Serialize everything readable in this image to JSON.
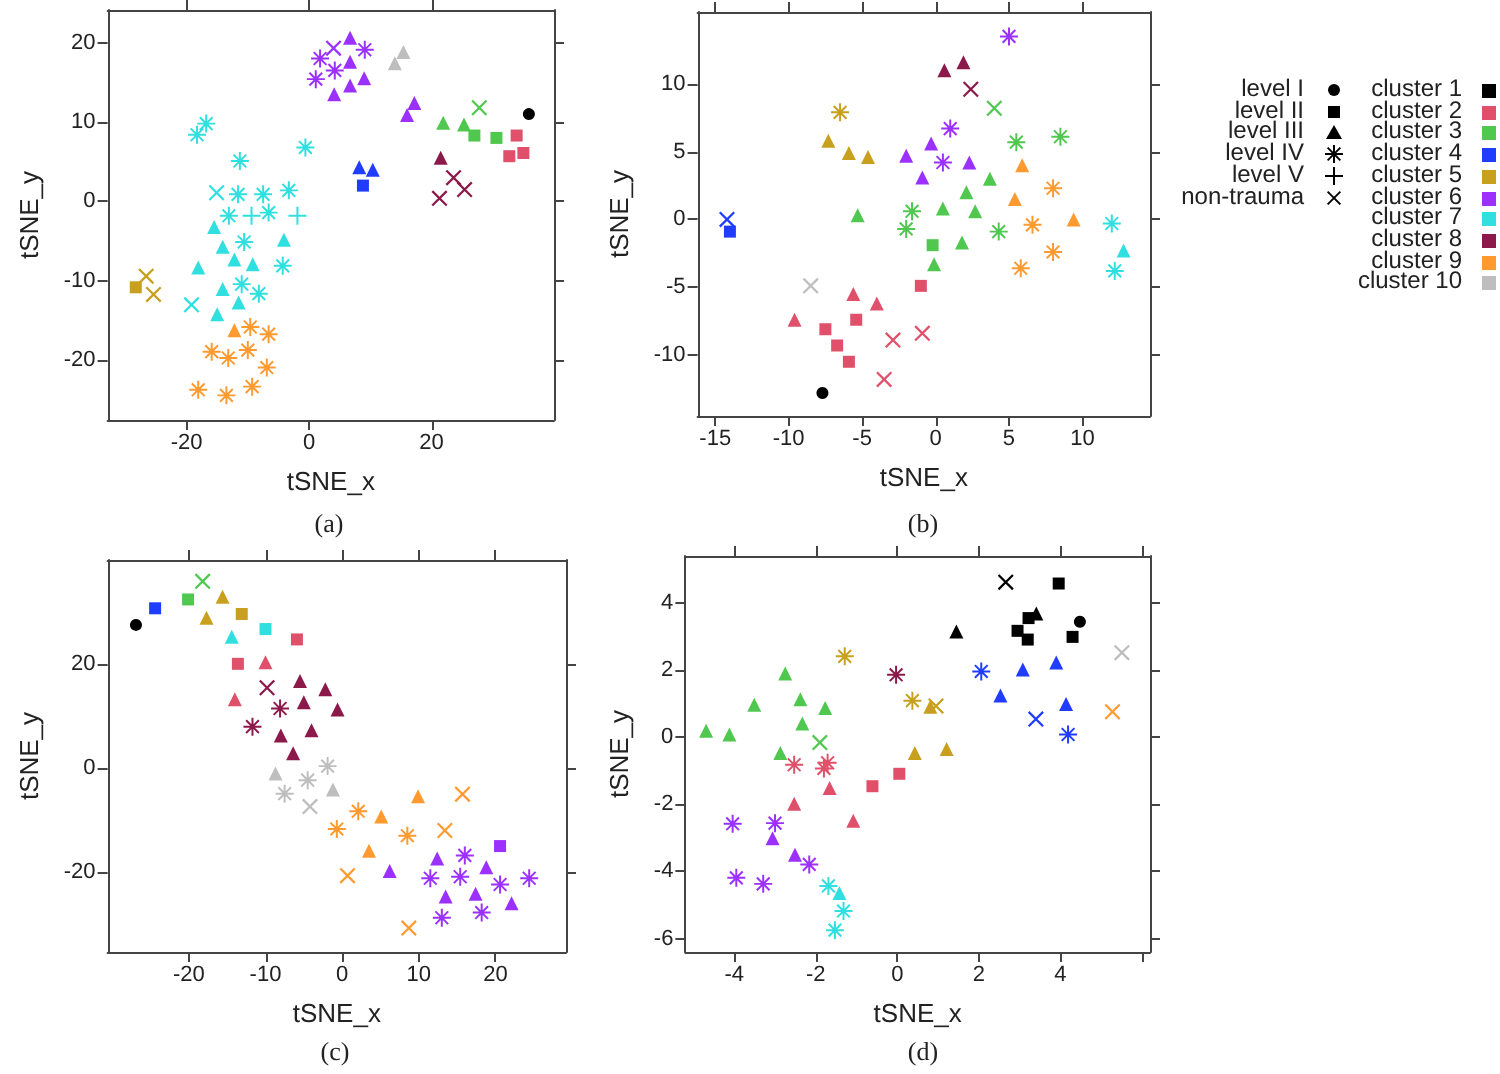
{
  "chart_data": [
    {
      "type": "scatter",
      "title": "(a)",
      "xlabel": "tSNE_x",
      "ylabel": "tSNE_y",
      "xlim": [
        -32.9,
        40
      ],
      "ylim": [
        -27.5,
        24.1
      ],
      "xticks": [
        -20,
        0,
        20
      ],
      "yticks": [
        -20,
        -10,
        0,
        10,
        20
      ],
      "series": [
        {
          "color": "#000000",
          "marker": "circle",
          "x": [
            35.9
          ],
          "values": [
            11.0
          ]
        },
        {
          "color": "#e0506a",
          "marker": "square",
          "x": [
            33.9,
            32.7,
            35.0
          ],
          "values": [
            8.3,
            5.7,
            6.1
          ]
        },
        {
          "color": "#50c850",
          "marker": "cross",
          "x": [
            27.8
          ],
          "values": [
            11.8
          ]
        },
        {
          "color": "#50c850",
          "marker": "triangle",
          "x": [
            21.9,
            25.3
          ],
          "values": [
            9.9,
            9.7
          ]
        },
        {
          "color": "#50c850",
          "marker": "square",
          "x": [
            27.0,
            30.6
          ],
          "values": [
            8.3,
            8.0
          ]
        },
        {
          "color": "#1f3cff",
          "marker": "triangle",
          "x": [
            8.2,
            10.4
          ],
          "values": [
            4.3,
            4.0
          ]
        },
        {
          "color": "#1f3cff",
          "marker": "square",
          "x": [
            8.8
          ],
          "values": [
            2.0
          ]
        },
        {
          "color": "#c8a01e",
          "marker": "square",
          "x": [
            -28.3
          ],
          "values": [
            -10.8
          ]
        },
        {
          "color": "#c8a01e",
          "marker": "cross",
          "x": [
            -26.6,
            -25.4
          ],
          "values": [
            -9.4,
            -11.7
          ]
        },
        {
          "color": "#9b30ff",
          "marker": "star",
          "x": [
            1.8,
            4.2,
            9.1,
            1.1
          ],
          "values": [
            18.0,
            16.5,
            19.1,
            15.4
          ]
        },
        {
          "color": "#9b30ff",
          "marker": "cross",
          "x": [
            4.0
          ],
          "values": [
            19.3
          ]
        },
        {
          "color": "#9b30ff",
          "marker": "triangle",
          "x": [
            6.7,
            6.7,
            4.1,
            6.7,
            9.0,
            17.2,
            16.0
          ],
          "values": [
            20.6,
            17.6,
            13.5,
            14.6,
            15.5,
            12.4,
            10.9
          ]
        },
        {
          "color": "#30e0e0",
          "marker": "star",
          "x": [
            -16.8,
            -18.3,
            -0.6,
            -11.3,
            -11.6,
            -7.5,
            -3.3,
            -13.1,
            -6.6,
            -10.6,
            -4.3,
            -11.0,
            -8.2
          ],
          "values": [
            9.8,
            8.4,
            6.8,
            5.1,
            0.9,
            0.9,
            1.4,
            -1.8,
            -1.4,
            -5.1,
            -8.1,
            -10.4,
            -11.6
          ]
        },
        {
          "color": "#30e0e0",
          "marker": "cross",
          "x": [
            -15.1,
            -19.2
          ],
          "values": [
            1.1,
            -13.0
          ]
        },
        {
          "color": "#30e0e0",
          "marker": "plus",
          "x": [
            -9.4,
            -1.9
          ],
          "values": [
            -1.8,
            -1.8
          ]
        },
        {
          "color": "#30e0e0",
          "marker": "triangle",
          "x": [
            -15.5,
            -4.1,
            -14.1,
            -12.2,
            -18.1,
            -9.2,
            -14.1,
            -11.5,
            -15.0
          ],
          "values": [
            -3.2,
            -4.8,
            -5.7,
            -7.3,
            -8.3,
            -7.9,
            -11.0,
            -12.7,
            -14.2
          ]
        },
        {
          "color": "#8b1a4a",
          "marker": "triangle",
          "x": [
            21.5
          ],
          "values": [
            5.5
          ]
        },
        {
          "color": "#8b1a4a",
          "marker": "cross",
          "x": [
            23.6,
            25.4,
            21.3
          ],
          "values": [
            3.0,
            1.5,
            0.4
          ]
        },
        {
          "color": "#ff9a30",
          "marker": "triangle",
          "x": [
            -12.2
          ],
          "values": [
            -16.2
          ]
        },
        {
          "color": "#ff9a30",
          "marker": "star",
          "x": [
            -9.6,
            -6.6,
            -15.9,
            -13.2,
            -10.0,
            -6.9,
            -18.1,
            -13.5,
            -9.3
          ],
          "values": [
            -15.8,
            -16.7,
            -18.9,
            -19.7,
            -18.7,
            -20.9,
            -23.7,
            -24.4,
            -23.3
          ]
        },
        {
          "color": "#bebebe",
          "marker": "triangle",
          "x": [
            14.0,
            15.4
          ],
          "values": [
            17.4,
            18.8
          ]
        }
      ]
    },
    {
      "type": "scatter",
      "title": "(b)",
      "xlabel": "tSNE_x",
      "ylabel": "tSNE_y",
      "xlim": [
        -16.2,
        14.6
      ],
      "ylim": [
        -14.5,
        15.3
      ],
      "xticks": [
        -15,
        -10,
        -5,
        0,
        5,
        10
      ],
      "yticks": [
        -10,
        -5,
        0,
        5,
        10
      ],
      "series": [
        {
          "color": "#000000",
          "marker": "circle",
          "x": [
            -7.7
          ],
          "values": [
            -12.8
          ]
        },
        {
          "color": "#e0506a",
          "marker": "square",
          "x": [
            -1.0,
            -5.4,
            -7.5,
            -6.7,
            -5.9
          ],
          "values": [
            -4.9,
            -7.4,
            -8.1,
            -9.3,
            -10.5
          ]
        },
        {
          "color": "#e0506a",
          "marker": "triangle",
          "x": [
            -5.6,
            -4.0,
            -9.6
          ],
          "values": [
            -5.5,
            -6.2,
            -7.4
          ]
        },
        {
          "color": "#e0506a",
          "marker": "cross",
          "x": [
            -2.9,
            -0.9,
            -3.5
          ],
          "values": [
            -8.9,
            -8.4,
            -11.8
          ]
        },
        {
          "color": "#50c850",
          "marker": "cross",
          "x": [
            4.0
          ],
          "values": [
            8.2
          ]
        },
        {
          "color": "#50c850",
          "marker": "star",
          "x": [
            5.5,
            8.5,
            -1.6,
            -2.0,
            4.3
          ],
          "values": [
            5.7,
            6.1,
            0.6,
            -0.7,
            -0.9
          ]
        },
        {
          "color": "#50c850",
          "marker": "triangle",
          "x": [
            3.7,
            2.1,
            0.5,
            2.7,
            -5.3,
            1.8,
            -0.1
          ],
          "values": [
            3.0,
            2.0,
            0.8,
            0.6,
            0.3,
            -1.7,
            -3.3
          ]
        },
        {
          "color": "#50c850",
          "marker": "square",
          "x": [
            -0.2
          ],
          "values": [
            -1.9
          ]
        },
        {
          "color": "#1f3cff",
          "marker": "cross",
          "x": [
            -14.2
          ],
          "values": [
            0.0
          ]
        },
        {
          "color": "#1f3cff",
          "marker": "square",
          "x": [
            -14.0
          ],
          "values": [
            -0.9
          ]
        },
        {
          "color": "#c8a01e",
          "marker": "star",
          "x": [
            -6.5
          ],
          "values": [
            7.9
          ]
        },
        {
          "color": "#c8a01e",
          "marker": "triangle",
          "x": [
            -7.3,
            -5.9,
            -4.6
          ],
          "values": [
            5.8,
            4.9,
            4.6
          ]
        },
        {
          "color": "#9b30ff",
          "marker": "star",
          "x": [
            5.0,
            1.0,
            0.5
          ],
          "values": [
            13.5,
            6.7,
            4.2
          ]
        },
        {
          "color": "#9b30ff",
          "marker": "triangle",
          "x": [
            -2.0,
            -0.3,
            2.3,
            -0.9
          ],
          "values": [
            4.7,
            5.6,
            4.2,
            3.1
          ]
        },
        {
          "color": "#30e0e0",
          "marker": "star",
          "x": [
            12.0,
            12.2
          ],
          "values": [
            -0.3,
            -3.8
          ]
        },
        {
          "color": "#30e0e0",
          "marker": "triangle",
          "x": [
            12.8
          ],
          "values": [
            -2.3
          ]
        },
        {
          "color": "#8b1a4a",
          "marker": "triangle",
          "x": [
            0.6,
            1.9
          ],
          "values": [
            11.0,
            11.6
          ]
        },
        {
          "color": "#8b1a4a",
          "marker": "cross",
          "x": [
            2.4
          ],
          "values": [
            9.6
          ]
        },
        {
          "color": "#ff9a30",
          "marker": "triangle",
          "x": [
            5.9,
            5.4,
            9.4
          ],
          "values": [
            4.0,
            1.5,
            0.0
          ]
        },
        {
          "color": "#ff9a30",
          "marker": "star",
          "x": [
            8.0,
            6.6,
            8.0,
            5.8
          ],
          "values": [
            2.3,
            -0.4,
            -2.4,
            -3.6
          ]
        },
        {
          "color": "#bebebe",
          "marker": "cross",
          "x": [
            -8.5
          ],
          "values": [
            -4.9
          ]
        }
      ]
    },
    {
      "type": "scatter",
      "title": "(c)",
      "xlabel": "tSNE_x",
      "ylabel": "tSNE_y",
      "xlim": [
        -30.6,
        29.2
      ],
      "ylim": [
        -35.4,
        40.1
      ],
      "xticks": [
        -20,
        -10,
        0,
        10,
        20
      ],
      "yticks": [
        -20,
        0,
        20
      ],
      "series": [
        {
          "color": "#000000",
          "marker": "circle",
          "x": [
            -26.9
          ],
          "values": [
            27.6
          ]
        },
        {
          "color": "#e0506a",
          "marker": "square",
          "x": [
            -5.9,
            -13.6
          ],
          "values": [
            24.8,
            20.1
          ]
        },
        {
          "color": "#e0506a",
          "marker": "triangle",
          "x": [
            -10.0,
            -14.0
          ],
          "values": [
            20.4,
            13.3
          ]
        },
        {
          "color": "#50c850",
          "marker": "square",
          "x": [
            -20.1
          ],
          "values": [
            32.5
          ]
        },
        {
          "color": "#50c850",
          "marker": "cross",
          "x": [
            -18.2
          ],
          "values": [
            36.0
          ]
        },
        {
          "color": "#1f3cff",
          "marker": "square",
          "x": [
            -24.4
          ],
          "values": [
            30.8
          ]
        },
        {
          "color": "#c8a01e",
          "marker": "triangle",
          "x": [
            -15.6,
            -17.7
          ],
          "values": [
            33.0,
            29.0
          ]
        },
        {
          "color": "#c8a01e",
          "marker": "square",
          "x": [
            -13.1
          ],
          "values": [
            29.7
          ]
        },
        {
          "color": "#9b30ff",
          "marker": "triangle",
          "x": [
            6.2,
            12.4,
            18.8,
            13.5,
            17.4,
            22.1
          ],
          "values": [
            -19.8,
            -17.4,
            -19.1,
            -24.7,
            -24.2,
            -26.0
          ]
        },
        {
          "color": "#9b30ff",
          "marker": "square",
          "x": [
            20.6
          ],
          "values": [
            -15.0
          ]
        },
        {
          "color": "#9b30ff",
          "marker": "star",
          "x": [
            16.0,
            11.5,
            15.4,
            20.6,
            24.4,
            13.0,
            18.2
          ],
          "values": [
            -16.8,
            -21.2,
            -20.9,
            -22.4,
            -21.2,
            -28.8,
            -27.8
          ]
        },
        {
          "color": "#30e0e0",
          "marker": "triangle",
          "x": [
            -14.4
          ],
          "values": [
            25.3
          ]
        },
        {
          "color": "#30e0e0",
          "marker": "square",
          "x": [
            -10.0
          ],
          "values": [
            26.8
          ]
        },
        {
          "color": "#8b1a4a",
          "marker": "cross",
          "x": [
            -9.8
          ],
          "values": [
            15.5
          ]
        },
        {
          "color": "#8b1a4a",
          "marker": "triangle",
          "x": [
            -5.5,
            -2.2,
            -5.0,
            -0.6,
            -8.0,
            -4.0,
            -6.4
          ],
          "values": [
            16.8,
            15.2,
            12.7,
            11.3,
            6.3,
            7.3,
            2.9
          ]
        },
        {
          "color": "#8b1a4a",
          "marker": "star",
          "x": [
            -8.1,
            -11.7
          ],
          "values": [
            11.5,
            8.0
          ]
        },
        {
          "color": "#ff9a30",
          "marker": "triangle",
          "x": [
            9.9,
            5.1,
            3.5
          ],
          "values": [
            -5.4,
            -9.3,
            -15.9
          ]
        },
        {
          "color": "#ff9a30",
          "marker": "cross",
          "x": [
            15.7,
            13.4,
            0.7,
            8.7
          ],
          "values": [
            -5.0,
            -12.0,
            -20.7,
            -30.8
          ]
        },
        {
          "color": "#ff9a30",
          "marker": "star",
          "x": [
            2.1,
            -0.7,
            8.5
          ],
          "values": [
            -8.3,
            -11.7,
            -13.0
          ]
        },
        {
          "color": "#bebebe",
          "marker": "triangle",
          "x": [
            -8.7,
            -1.2
          ],
          "values": [
            -1.0,
            -4.1
          ]
        },
        {
          "color": "#bebebe",
          "marker": "star",
          "x": [
            -1.9,
            -7.5,
            -4.5
          ],
          "values": [
            0.4,
            -4.9,
            -2.3
          ]
        },
        {
          "color": "#bebebe",
          "marker": "cross",
          "x": [
            -4.2
          ],
          "values": [
            -7.4
          ]
        }
      ]
    },
    {
      "type": "scatter",
      "title": "(d)",
      "xlabel": "tSNE_x",
      "ylabel": "tSNE_y",
      "xlim": [
        -5.2,
        6.2
      ],
      "ylim": [
        -6.4,
        5.4
      ],
      "xticks": [
        -4,
        -2,
        0,
        2,
        4,
        {
          "value": 6,
          "label": null
        }
      ],
      "yticks": [
        -6,
        -4,
        -2,
        0,
        2,
        4
      ],
      "series": [
        {
          "color": "#000000",
          "marker": "cross",
          "x": [
            2.66
          ],
          "values": [
            4.62
          ]
        },
        {
          "color": "#000000",
          "marker": "square",
          "x": [
            3.96,
            3.22,
            2.95,
            3.2,
            4.3
          ],
          "values": [
            4.58,
            3.55,
            3.17,
            2.91,
            2.99
          ]
        },
        {
          "color": "#000000",
          "marker": "triangle",
          "x": [
            3.41,
            1.45
          ],
          "values": [
            3.69,
            3.15
          ]
        },
        {
          "color": "#000000",
          "marker": "circle",
          "x": [
            4.48
          ],
          "values": [
            3.44
          ]
        },
        {
          "color": "#e0506a",
          "marker": "star",
          "x": [
            -2.53,
            -1.71,
            -1.8
          ],
          "values": [
            -0.82,
            -0.76,
            -0.93
          ]
        },
        {
          "color": "#e0506a",
          "marker": "triangle",
          "x": [
            -1.66,
            -2.53,
            -1.08
          ],
          "values": [
            -1.51,
            -1.98,
            -2.49
          ]
        },
        {
          "color": "#e0506a",
          "marker": "square",
          "x": [
            -0.61,
            0.05
          ],
          "values": [
            -1.46,
            -1.09
          ]
        },
        {
          "color": "#50c850",
          "marker": "triangle",
          "x": [
            -2.75,
            -3.51,
            -2.38,
            -1.77,
            -2.33,
            -4.69,
            -4.12,
            -2.87
          ],
          "values": [
            1.9,
            0.97,
            1.13,
            0.87,
            0.41,
            0.19,
            0.08,
            -0.47
          ]
        },
        {
          "color": "#50c850",
          "marker": "cross",
          "x": [
            -1.9
          ],
          "values": [
            -0.16
          ]
        },
        {
          "color": "#1f3cff",
          "marker": "star",
          "x": [
            2.06,
            4.19
          ],
          "values": [
            1.96,
            0.08
          ]
        },
        {
          "color": "#1f3cff",
          "marker": "triangle",
          "x": [
            3.08,
            3.9,
            2.53,
            4.14
          ],
          "values": [
            2.02,
            2.23,
            1.24,
            0.99
          ]
        },
        {
          "color": "#1f3cff",
          "marker": "cross",
          "x": [
            3.4
          ],
          "values": [
            0.54
          ]
        },
        {
          "color": "#c8a01e",
          "marker": "star",
          "x": [
            -1.29,
            0.37
          ],
          "values": [
            2.41,
            1.09
          ]
        },
        {
          "color": "#c8a01e",
          "marker": "triangle",
          "x": [
            0.81,
            0.43,
            1.21
          ],
          "values": [
            0.91,
            -0.47,
            -0.35
          ]
        },
        {
          "color": "#c8a01e",
          "marker": "cross",
          "x": [
            0.95
          ],
          "values": [
            0.93
          ]
        },
        {
          "color": "#9b30ff",
          "marker": "star",
          "x": [
            -4.04,
            -3.0,
            -2.16,
            -3.95,
            -3.29
          ],
          "values": [
            -2.58,
            -2.56,
            -3.79,
            -4.19,
            -4.37
          ]
        },
        {
          "color": "#9b30ff",
          "marker": "triangle",
          "x": [
            -3.06,
            -2.51
          ],
          "values": [
            -3.01,
            -3.5
          ]
        },
        {
          "color": "#30e0e0",
          "marker": "star",
          "x": [
            -1.69,
            -1.32,
            -1.53
          ],
          "values": [
            -4.43,
            -5.18,
            -5.75
          ]
        },
        {
          "color": "#30e0e0",
          "marker": "triangle",
          "x": [
            -1.42
          ],
          "values": [
            -4.64
          ]
        },
        {
          "color": "#8b1a4a",
          "marker": "star",
          "x": [
            -0.03
          ],
          "values": [
            1.86
          ]
        },
        {
          "color": "#ff9a30",
          "marker": "cross",
          "x": [
            5.28
          ],
          "values": [
            0.76
          ]
        },
        {
          "color": "#bebebe",
          "marker": "cross",
          "x": [
            5.51
          ],
          "values": [
            2.52
          ]
        }
      ]
    },
    {
      "type": "other",
      "series": [
        {
          "name": "level I",
          "marker": "circle"
        },
        {
          "name": "level II",
          "marker": "square"
        },
        {
          "name": "level III",
          "marker": "triangle"
        },
        {
          "name": "level IV",
          "marker": "star"
        },
        {
          "name": "level V",
          "marker": "plus"
        },
        {
          "name": "non-trauma",
          "marker": "cross"
        },
        {
          "name": "cluster 1",
          "color": "#000000"
        },
        {
          "name": "cluster 2",
          "color": "#e0506a"
        },
        {
          "name": "cluster 3",
          "color": "#50c850"
        },
        {
          "name": "cluster 4",
          "color": "#1f3cff"
        },
        {
          "name": "cluster 5",
          "color": "#c8a01e"
        },
        {
          "name": "cluster 6",
          "color": "#9b30ff"
        },
        {
          "name": "cluster 7",
          "color": "#30e0e0"
        },
        {
          "name": "cluster 8",
          "color": "#8b1a4a"
        },
        {
          "name": "cluster 9",
          "color": "#ff9a30"
        },
        {
          "name": "cluster 10",
          "color": "#bebebe"
        }
      ]
    }
  ]
}
